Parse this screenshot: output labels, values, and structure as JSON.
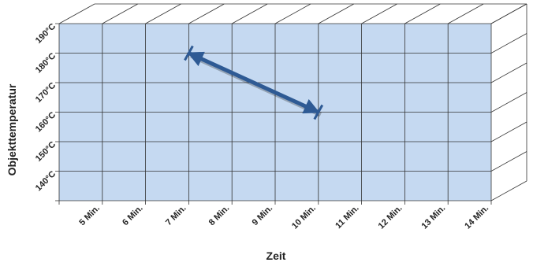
{
  "chart_data": {
    "type": "line",
    "x_label": "Zeit",
    "y_label": "Objekttemperatur",
    "xlim": [
      4,
      14
    ],
    "xticks": [
      {
        "value": 5,
        "label": "5 Min."
      },
      {
        "value": 6,
        "label": "6 Min."
      },
      {
        "value": 7,
        "label": "7 Min."
      },
      {
        "value": 8,
        "label": "8 Min."
      },
      {
        "value": 9,
        "label": "9 Min."
      },
      {
        "value": 10,
        "label": "10 Min."
      },
      {
        "value": 11,
        "label": "11 Min."
      },
      {
        "value": 12,
        "label": "12 Min."
      },
      {
        "value": 13,
        "label": "13 Min."
      },
      {
        "value": 14,
        "label": "14 Min."
      }
    ],
    "ylim": [
      130,
      190
    ],
    "yticks": [
      {
        "value": 140,
        "label": "140°C"
      },
      {
        "value": 150,
        "label": "150°C"
      },
      {
        "value": 160,
        "label": "160°C"
      },
      {
        "value": 170,
        "label": "170°C"
      },
      {
        "value": 180,
        "label": "180°C"
      },
      {
        "value": 190,
        "label": "190°C"
      }
    ],
    "grid": true,
    "x": [
      7,
      10
    ],
    "series": [
      {
        "color": "#2e5a94",
        "values": [
          180,
          160
        ]
      }
    ]
  }
}
